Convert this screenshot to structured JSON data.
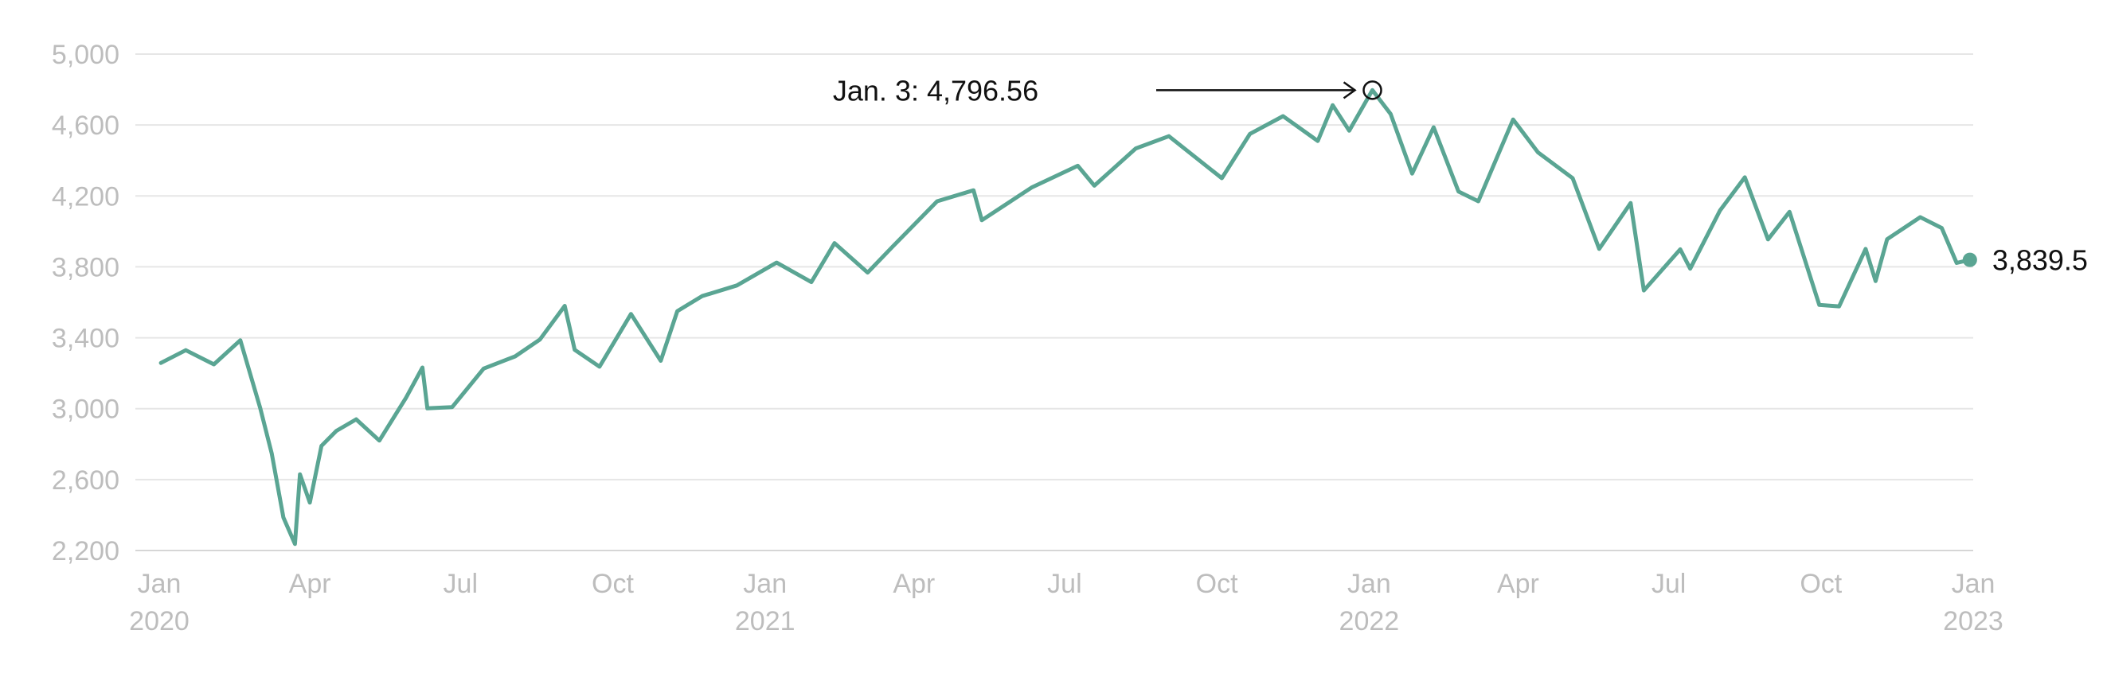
{
  "chart_data": {
    "type": "line",
    "line_color": "#5aa593",
    "ylim": [
      2200,
      5000
    ],
    "yticks": [
      {
        "value": 2200,
        "label": "2,200"
      },
      {
        "value": 2600,
        "label": "2,600"
      },
      {
        "value": 3000,
        "label": "3,000"
      },
      {
        "value": 3400,
        "label": "3,400"
      },
      {
        "value": 3800,
        "label": "3,800"
      },
      {
        "value": 4200,
        "label": "4,200"
      },
      {
        "value": 4600,
        "label": "4,600"
      },
      {
        "value": 5000,
        "label": "5,000"
      }
    ],
    "xticks": [
      {
        "date": "2020-01-01",
        "label": "Jan",
        "year": "2020"
      },
      {
        "date": "2020-04-01",
        "label": "Apr",
        "year": ""
      },
      {
        "date": "2020-07-01",
        "label": "Jul",
        "year": ""
      },
      {
        "date": "2020-10-01",
        "label": "Oct",
        "year": ""
      },
      {
        "date": "2021-01-01",
        "label": "Jan",
        "year": "2021"
      },
      {
        "date": "2021-04-01",
        "label": "Apr",
        "year": ""
      },
      {
        "date": "2021-07-01",
        "label": "Jul",
        "year": ""
      },
      {
        "date": "2021-10-01",
        "label": "Oct",
        "year": ""
      },
      {
        "date": "2022-01-01",
        "label": "Jan",
        "year": "2022"
      },
      {
        "date": "2022-04-01",
        "label": "Apr",
        "year": ""
      },
      {
        "date": "2022-07-01",
        "label": "Jul",
        "year": ""
      },
      {
        "date": "2022-10-01",
        "label": "Oct",
        "year": ""
      },
      {
        "date": "2023-01-01",
        "label": "Jan",
        "year": "2023"
      }
    ],
    "x": [
      "2020-01-02",
      "2020-01-17",
      "2020-02-03",
      "2020-02-19",
      "2020-03-02",
      "2020-03-09",
      "2020-03-16",
      "2020-03-23",
      "2020-03-26",
      "2020-04-01",
      "2020-04-08",
      "2020-04-17",
      "2020-04-29",
      "2020-05-13",
      "2020-05-29",
      "2020-06-08",
      "2020-06-11",
      "2020-06-26",
      "2020-07-15",
      "2020-08-03",
      "2020-08-18",
      "2020-09-02",
      "2020-09-08",
      "2020-09-23",
      "2020-10-12",
      "2020-10-30",
      "2020-11-09",
      "2020-11-24",
      "2020-12-15",
      "2021-01-08",
      "2021-01-29",
      "2021-02-12",
      "2021-03-04",
      "2021-03-19",
      "2021-04-15",
      "2021-05-07",
      "2021-05-12",
      "2021-06-11",
      "2021-07-09",
      "2021-07-19",
      "2021-08-13",
      "2021-09-02",
      "2021-10-04",
      "2021-10-21",
      "2021-11-10",
      "2021-12-01",
      "2021-12-10",
      "2021-12-20",
      "2022-01-03",
      "2022-01-14",
      "2022-01-27",
      "2022-02-09",
      "2022-02-24",
      "2022-03-08",
      "2022-03-29",
      "2022-04-13",
      "2022-05-04",
      "2022-05-20",
      "2022-06-08",
      "2022-06-16",
      "2022-07-08",
      "2022-07-14",
      "2022-08-01",
      "2022-08-16",
      "2022-08-30",
      "2022-09-12",
      "2022-09-30",
      "2022-10-12",
      "2022-10-28",
      "2022-11-03",
      "2022-11-10",
      "2022-11-30",
      "2022-12-13",
      "2022-12-22",
      "2022-12-30"
    ],
    "y": [
      3258,
      3330,
      3250,
      3386,
      3003,
      2746,
      2386,
      2237,
      2630,
      2470,
      2790,
      2875,
      2940,
      2820,
      3060,
      3232,
      3002,
      3009,
      3226,
      3295,
      3390,
      3580,
      3332,
      3237,
      3534,
      3270,
      3550,
      3635,
      3695,
      3824,
      3714,
      3934,
      3768,
      3913,
      4170,
      4232,
      4063,
      4247,
      4370,
      4258,
      4468,
      4537,
      4300,
      4550,
      4650,
      4510,
      4712,
      4568,
      4796.56,
      4662,
      4326,
      4587,
      4225,
      4170,
      4631,
      4446,
      4300,
      3901,
      4160,
      3667,
      3899,
      3790,
      4118,
      4305,
      3955,
      4110,
      3585,
      3577,
      3901,
      3720,
      3956,
      4080,
      4019,
      3822,
      3839.5
    ],
    "annotation": {
      "date": "2022-01-03",
      "value": 4796.56,
      "label": "Jan. 3: 4,796.56"
    },
    "end_label": {
      "date": "2022-12-30",
      "value": 3839.5,
      "label": "3,839.5"
    }
  }
}
